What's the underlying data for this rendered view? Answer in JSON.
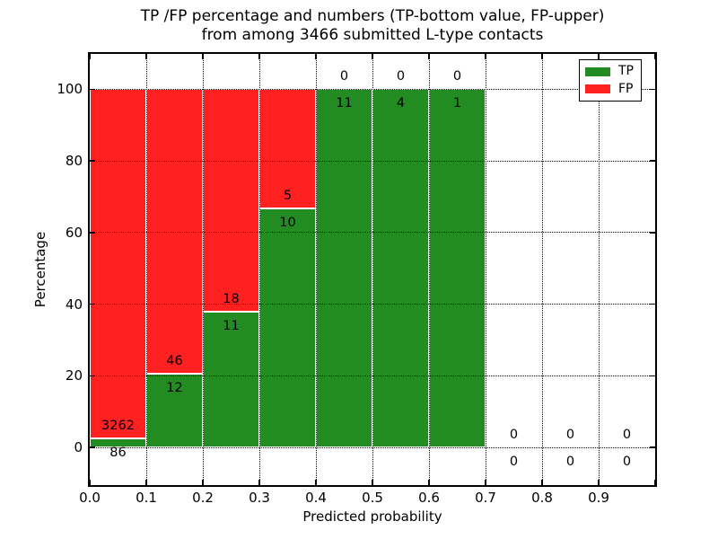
{
  "figure": {
    "background": "#ffffff",
    "frame_color": "#000000"
  },
  "chart_data": {
    "type": "bar",
    "stacked": true,
    "normalized": "percent",
    "title": "TP /FP percentage and numbers (TP-bottom value, FP-upper)\nfrom among 3466 submitted L-type contacts",
    "title_line1": "TP /FP percentage and numbers (TP-bottom value, FP-upper)",
    "title_line2": "from among 3466 submitted L-type contacts",
    "xlabel": "Predicted probability",
    "ylabel": "Percentage",
    "total_submitted": 3466,
    "xlim": [
      0.0,
      1.0
    ],
    "ylim_display": [
      -10.5,
      110
    ],
    "grid": "dotted",
    "x_tick_labels": [
      "0.0",
      "0.1",
      "0.2",
      "0.3",
      "0.4",
      "0.5",
      "0.6",
      "0.7",
      "0.8",
      "0.9"
    ],
    "y_ticks": [
      0,
      20,
      40,
      60,
      80,
      100
    ],
    "y_tick_labels": [
      "0",
      "20",
      "40",
      "60",
      "80",
      "100"
    ],
    "bins": [
      {
        "range": "0.0-0.1",
        "tp": 86,
        "fp": 3262
      },
      {
        "range": "0.1-0.2",
        "tp": 12,
        "fp": 46
      },
      {
        "range": "0.2-0.3",
        "tp": 11,
        "fp": 18
      },
      {
        "range": "0.3-0.4",
        "tp": 10,
        "fp": 5
      },
      {
        "range": "0.4-0.5",
        "tp": 11,
        "fp": 0
      },
      {
        "range": "0.5-0.6",
        "tp": 4,
        "fp": 0
      },
      {
        "range": "0.6-0.7",
        "tp": 1,
        "fp": 0
      },
      {
        "range": "0.7-0.8",
        "tp": 0,
        "fp": 0
      },
      {
        "range": "0.8-0.9",
        "tp": 0,
        "fp": 0
      },
      {
        "range": "0.9-1.0",
        "tp": 0,
        "fp": 0
      }
    ],
    "series": [
      {
        "name": "TP",
        "color": "#228b22",
        "values": [
          86,
          12,
          11,
          10,
          11,
          4,
          1,
          0,
          0,
          0
        ]
      },
      {
        "name": "FP",
        "color": "#ff2020",
        "values": [
          3262,
          46,
          18,
          5,
          0,
          0,
          0,
          0,
          0,
          0
        ]
      }
    ],
    "legend": {
      "position": "upper-right",
      "entries": [
        {
          "label": "TP",
          "color": "#228b22"
        },
        {
          "label": "FP",
          "color": "#ff2020"
        }
      ]
    }
  }
}
